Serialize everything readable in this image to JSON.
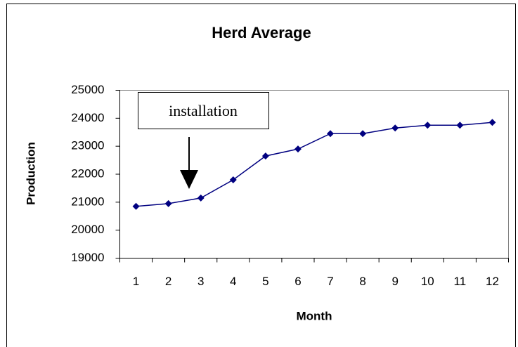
{
  "chart_data": {
    "type": "line",
    "title": "Herd Average",
    "x_label": "Month",
    "y_label": "Production",
    "annotation": "installation",
    "categories": [
      1,
      2,
      3,
      4,
      5,
      6,
      7,
      8,
      9,
      10,
      11,
      12
    ],
    "series": [
      {
        "name": "Herd Average",
        "color": "#000080",
        "values": [
          20850,
          20950,
          21150,
          21800,
          22650,
          22900,
          23450,
          23450,
          23650,
          23750,
          23750,
          23850
        ]
      }
    ],
    "ylim": [
      19000,
      25000
    ],
    "yticks": [
      19000,
      20000,
      21000,
      22000,
      23000,
      24000,
      25000
    ],
    "grid": false
  }
}
